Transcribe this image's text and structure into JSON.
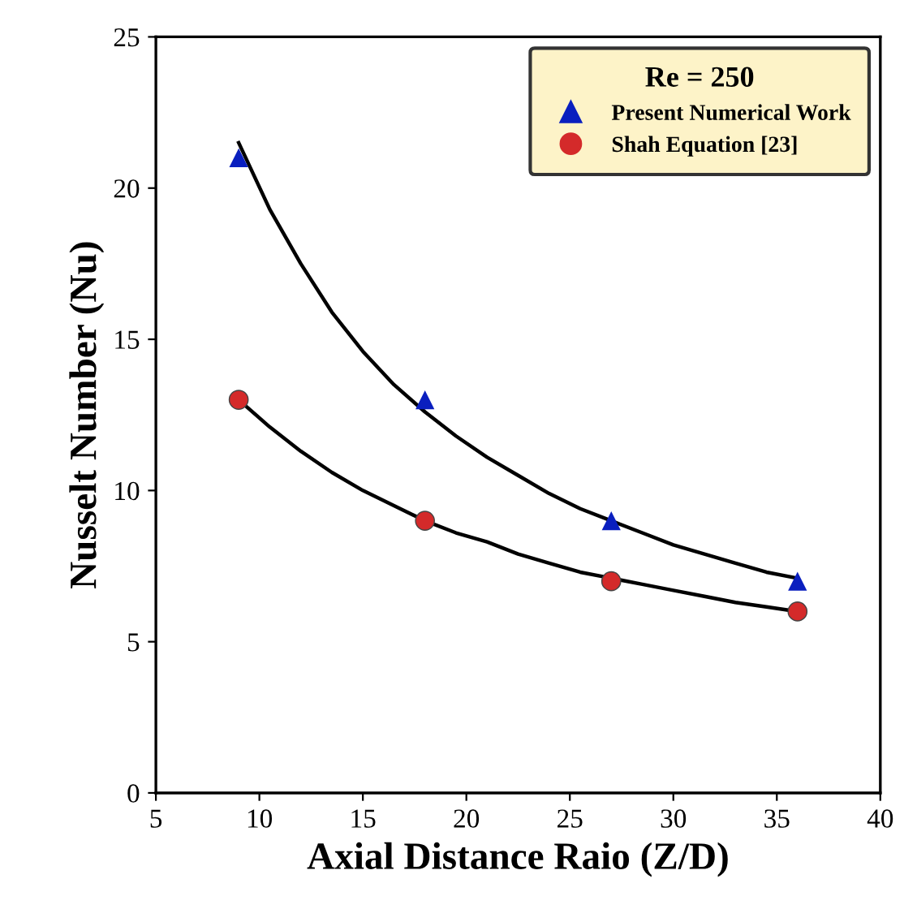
{
  "chart_data": {
    "type": "scatter",
    "xlabel": "Axial Distance Raio (Z/D)",
    "ylabel": "Nusselt Number (Nu)",
    "legend_title": "Re = 250",
    "legend": "top right",
    "grid": false,
    "xlim": [
      5,
      40
    ],
    "xticks": [
      5,
      10,
      15,
      20,
      25,
      30,
      35,
      40
    ],
    "ylim": [
      0,
      25
    ],
    "yticks": [
      0,
      5,
      10,
      15,
      20,
      25
    ],
    "series": [
      {
        "type": "line",
        "color": "#000000",
        "marker": "none",
        "x": [
          9,
          10.5,
          12,
          13.5,
          15,
          16.5,
          18,
          19.5,
          21,
          22.5,
          24,
          25.5,
          27,
          28.5,
          30,
          31.5,
          33,
          34.5,
          36
        ],
        "values": [
          21.5,
          19.3,
          17.5,
          15.9,
          14.6,
          13.5,
          12.6,
          11.8,
          11.1,
          10.5,
          9.9,
          9.4,
          9.0,
          8.6,
          8.2,
          7.9,
          7.6,
          7.3,
          7.1
        ]
      },
      {
        "type": "line",
        "color": "#000000",
        "marker": "none",
        "x": [
          9,
          10.5,
          12,
          13.5,
          15,
          16.5,
          18,
          19.5,
          21,
          22.5,
          24,
          25.5,
          27,
          28.5,
          30,
          31.5,
          33,
          34.5,
          36
        ],
        "values": [
          13.0,
          12.1,
          11.3,
          10.6,
          10.0,
          9.5,
          9.0,
          8.6,
          8.3,
          7.9,
          7.6,
          7.3,
          7.1,
          6.9,
          6.7,
          6.5,
          6.3,
          6.15,
          6.0
        ]
      },
      {
        "name": "Present Numerical Work",
        "color": "#0a1fbf",
        "marker": "triangle",
        "x": [
          9,
          18,
          27,
          36
        ],
        "values": [
          21,
          13,
          9,
          7
        ]
      },
      {
        "name": "Shah Equation [23]",
        "color": "#d42a2a",
        "marker": "circle",
        "x": [
          9,
          18,
          27,
          36
        ],
        "values": [
          13,
          9,
          7,
          6
        ]
      }
    ]
  }
}
